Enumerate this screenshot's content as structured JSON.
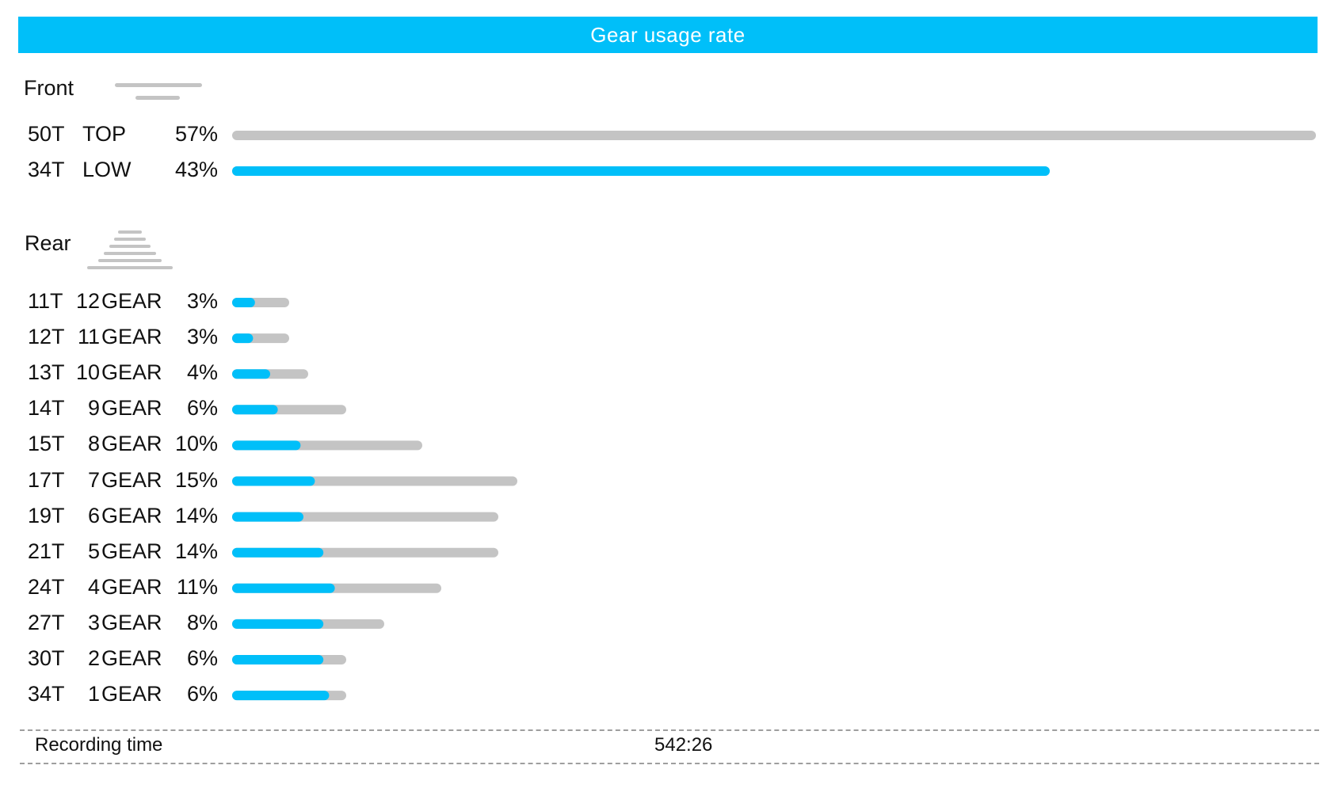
{
  "header": {
    "title": "Gear usage rate"
  },
  "colors": {
    "accent": "#00bff9",
    "track": "#c4c4c4",
    "text": "#111111"
  },
  "chart_data": {
    "type": "bar",
    "orientation": "horizontal",
    "front": {
      "label": "Front",
      "rows": [
        {
          "teeth": "50T",
          "name": "TOP",
          "pct_label": "57%",
          "value": 57,
          "fill_value": 0
        },
        {
          "teeth": "34T",
          "name": "LOW",
          "pct_label": "43%",
          "value": 43,
          "fill_value": 43
        }
      ]
    },
    "rear": {
      "label": "Rear",
      "gear_word": "GEAR",
      "rows": [
        {
          "teeth": "11T",
          "gear": "12",
          "pct_label": "3%",
          "value": 3,
          "fill_value": 1.2
        },
        {
          "teeth": "12T",
          "gear": "11",
          "pct_label": "3%",
          "value": 3,
          "fill_value": 1.1
        },
        {
          "teeth": "13T",
          "gear": "10",
          "pct_label": "4%",
          "value": 4,
          "fill_value": 2.0
        },
        {
          "teeth": "14T",
          "gear": "9",
          "pct_label": "6%",
          "value": 6,
          "fill_value": 2.4
        },
        {
          "teeth": "15T",
          "gear": "8",
          "pct_label": "10%",
          "value": 10,
          "fill_value": 3.6
        },
        {
          "teeth": "17T",
          "gear": "7",
          "pct_label": "15%",
          "value": 15,
          "fill_value": 4.35
        },
        {
          "teeth": "19T",
          "gear": "6",
          "pct_label": "14%",
          "value": 14,
          "fill_value": 3.75
        },
        {
          "teeth": "21T",
          "gear": "5",
          "pct_label": "14%",
          "value": 14,
          "fill_value": 4.8
        },
        {
          "teeth": "24T",
          "gear": "4",
          "pct_label": "11%",
          "value": 11,
          "fill_value": 5.4
        },
        {
          "teeth": "27T",
          "gear": "3",
          "pct_label": "8%",
          "value": 8,
          "fill_value": 4.8
        },
        {
          "teeth": "30T",
          "gear": "2",
          "pct_label": "6%",
          "value": 6,
          "fill_value": 4.8
        },
        {
          "teeth": "34T",
          "gear": "1",
          "pct_label": "6%",
          "value": 6,
          "fill_value": 5.1
        }
      ]
    }
  },
  "footer": {
    "recording_label": "Recording time",
    "recording_value": "542:26"
  }
}
